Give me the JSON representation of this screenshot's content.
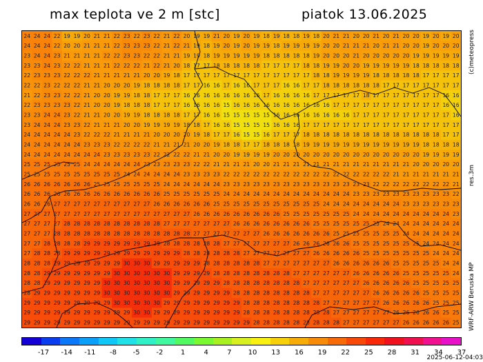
{
  "header": {
    "title": "max teplota ve 2 m [stc]",
    "date": "piatok 13.06.2025"
  },
  "side_labels": {
    "copyright": "(c)meteopress",
    "resolution": "res.3m",
    "model": "WRF-ARW Beruska MP"
  },
  "colorbar": {
    "labels": [
      "-17",
      "-14",
      "-11",
      "-8",
      "-5",
      "-2",
      "1",
      "4",
      "7",
      "10",
      "13",
      "16",
      "19",
      "22",
      "25",
      "28",
      "31",
      "34",
      "37"
    ],
    "colors": [
      "#1400d6",
      "#0a3cf0",
      "#0a78f8",
      "#0aa0fa",
      "#10c8f8",
      "#20e0e8",
      "#30f0c8",
      "#40f8a0",
      "#50fa60",
      "#7af830",
      "#a8f020",
      "#d8f020",
      "#f8f010",
      "#f8d00a",
      "#f8ac08",
      "#f88c08",
      "#f86a08",
      "#f84808",
      "#f82808",
      "#f0101e",
      "#f01050",
      "#f01090",
      "#e810c8"
    ]
  },
  "timestamp": "2025-06-12-04:03",
  "map": {
    "grid": [
      "24 24 24 22 19 19 20 21 21 22 23 22 23 22 21 22 20 19 19 21 20 19 20 19 18 19 18 18 19 18 20 21 21 20 20 21 20 21 20 20 19 20 19 20",
      "24 24 24 22 20 20 21 21 21 22 23 23 23 22 21 22 21 19 18 19 20 19 20 19 19 18 19 19 19 19 20 20 21 21 21 20 21 21 20 20 19 20 20 20",
      "23 24 24 23 21 21 21 21 22 22 23 23 22 22 21 21 19 19 18 19 19 19 19 19 18 18 18 18 18 19 20 20 20 21 20 20 20 20 20 19 19 19 19 19",
      "23 23 24 23 22 22 21 21 21 22 22 22 21 22 21 20 18 17 17 18 18 18 18 18 17 17 17 17 18 18 19 19 20 20 19 19 19 19 19 18 18 18 18 18",
      "22 23 23 23 22 22 22 21 21 21 21 21 20 20 19 18 17 17 17 17 17 17 17 17 17 17 17 17 17 18 18 19 19 19 19 18 18 18 18 18 17 17 17 17",
      "22 22 23 22 22 22 21 21 20 20 20 19 18 18 18 18 17 17 16 16 17 16 16 17 17 17 16 16 17 17 18 18 18 18 18 18 17 17 17 17 17 17 17 17",
      "21 22 23 23 22 22 21 20 20 19 19 18 18 17 17 17 16 16 16 16 16 16 16 16 17 16 16 16 16 17 17 17 17 17 18 17 17 17 17 17 17 17 16 16",
      "22 23 23 23 23 22 21 20 20 19 18 18 18 17 17 17 16 16 16 16 15 16 16 16 16 16 16 16 16 16 16 17 17 17 17 17 17 17 17 17 17 17 16 16",
      "23 23 24 24 23 22 21 21 20 20 19 19 18 18 18 18 17 17 16 16 15 15 15 15 15 16 16 16 16 16 16 16 16 17 17 17 17 17 17 17 17 17 17 16",
      "23 24 24 24 23 23 22 21 21 21 20 20 19 19 19 19 18 18 17 16 16 15 15 15 15 16 16 16 17 17 17 17 17 17 17 17 17 17 17 17 17 17 17 17",
      "24 24 24 24 24 23 22 22 22 21 21 21 21 20 20 20 20 19 18 17 17 16 15 15 16 17 17 17 18 18 18 18 18 18 18 18 18 18 18 18 18 18 17 17",
      "24 24 24 24 24 24 23 23 23 22 22 22 22 21 21 21 21 20 20 19 18 18 17 17 18 18 18 18 19 19 19 19 19 19 19 19 19 19 19 19 18 18 18 18",
      "24 24 24 24 24 24 24 24 23 23 23 23 23 22 22 22 22 21 21 20 20 19 19 19 19 20 20 20 20 20 20 20 20 20 20 20 20 20 20 20 19 19 19 19",
      "25 25 25 25 25 25 24 24 24 24 24 24 23 23 23 23 23 22 22 21 21 21 21 20 20 21 21 21 21 21 21 21 21 21 21 21 21 21 21 20 20 20 20 20",
      "25 25 25 25 25 25 25 25 25 25 24 24 24 24 24 24 23 23 23 23 22 22 22 22 22 22 22 22 22 22 22 22 22 22 22 22 22 21 21 21 21 21 21 21",
      "26 26 26 26 26 26 26 25 25 25 25 25 25 25 24 24 24 24 24 24 23 23 23 23 23 23 23 23 23 23 23 23 23 23 23 22 22 22 22 22 22 22 22 21",
      "26 26 26 26 26 26 26 26 26 26 26 26 26 26 25 25 25 25 25 25 24 24 24 24 24 24 24 24 24 24 24 24 24 23 23 23 23 23 23 23 23 23 23 22",
      "26 26 26 27 27 27 27 27 27 27 27 27 27 26 26 26 26 26 26 25 25 25 25 25 25 25 25 25 25 25 24 24 24 24 24 24 24 24 23 23 23 23 23 23",
      "27 27 27 27 27 27 27 27 27 27 27 27 27 27 27 27 27 26 26 26 26 26 26 26 26 26 25 25 25 25 25 25 25 24 24 24 24 24 24 24 24 24 24 23",
      "27 27 27 27 28 28 28 28 28 28 28 28 28 28 27 27 27 27 27 27 27 26 26 26 26 26 26 26 26 25 25 25 25 25 25 25 24 24 24 24 24 24 24 24",
      "27 27 27 28 28 28 28 28 28 28 28 28 28 28 28 28 28 27 27 27 27 27 27 27 26 26 26 26 26 26 26 25 25 25 25 25 25 25 24 24 24 24 24 24",
      "27 27 28 28 28 28 29 29 29 29 29 29 29 29 28 28 28 28 28 28 27 27 27 27 27 27 27 26 26 26 26 26 26 25 25 25 25 25 25 25 24 24 24 24",
      "27 28 28 28 29 29 29 29 29 29 29 29 29 29 29 29 28 28 28 28 28 28 27 27 27 27 27 27 27 26 26 26 26 26 25 25 25 25 25 25 25 24 24 24",
      "28 28 28 29 29 29 29 29 29 29 30 30 30 29 29 29 29 29 28 28 28 28 28 28 27 27 27 27 27 27 27 26 26 26 26 26 26 25 25 25 25 25 24 24",
      "28 28 29 29 29 29 29 29 29 30 30 30 30 30 30 29 29 29 29 28 28 28 28 28 28 28 28 27 27 27 27 27 27 26 26 26 26 26 25 25 25 25 25 24",
      "28 28 29 29 29 29 29 29 30 30 30 30 30 30 30 29 29 29 29 29 28 28 28 28 28 28 28 28 27 27 27 27 27 27 26 26 26 26 26 25 25 25 25 25",
      "28 29 29 29 29 29 29 29 30 30 30 30 30 30 30 29 29 29 29 29 29 28 28 28 28 28 28 28 28 27 27 27 27 27 27 26 26 26 26 26 25 25 25 25",
      "29 29 29 29 29 29 29 29 29 30 30 30 30 30 29 29 29 29 29 29 29 29 28 28 28 28 28 28 28 28 27 27 27 27 27 27 26 26 26 26 26 25 25 25",
      "29 29 29 29 29 29 29 29 29 29 29 30 30 29 29 29 29 29 29 29 29 29 28 28 28 28 28 28 28 28 28 27 27 27 27 27 27 26 26 26 26 26 25 25",
      "29 29 29 29 29 29 29 29 29 29 29 29 29 29 29 29 29 29 29 29 29 29 29 28 28 28 28 28 28 28 28 28 27 27 27 27 27 27 26 26 26 26 26 25"
    ]
  }
}
